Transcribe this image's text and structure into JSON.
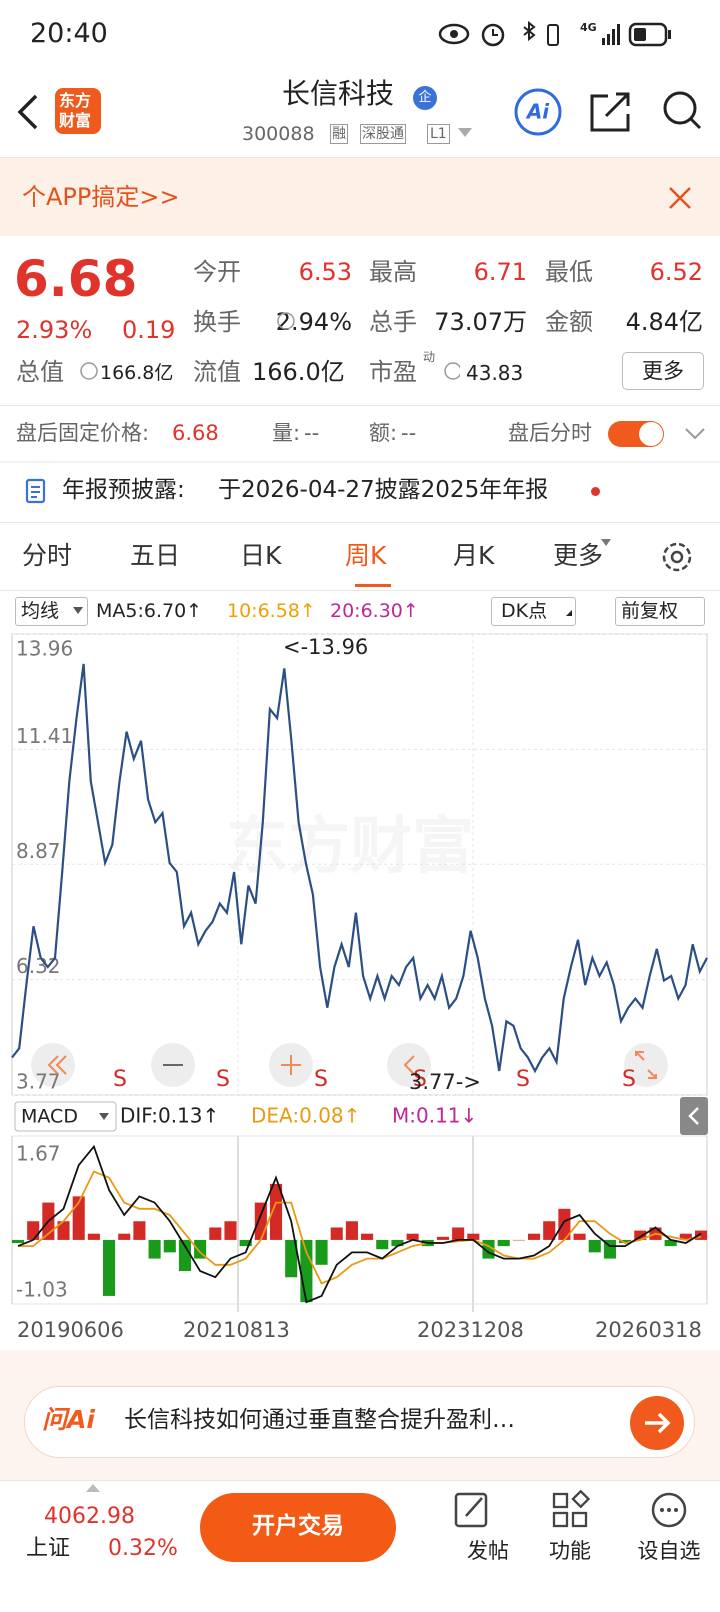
{
  "status_bar": {
    "time": "20:40",
    "network": "4G"
  },
  "header": {
    "logo": [
      "东方",
      "财富"
    ],
    "title": "长信科技",
    "badge": "企",
    "code": "300088",
    "tags": [
      "融",
      "深股通",
      "L1"
    ]
  },
  "banner": {
    "text": "个APP搞定>>"
  },
  "quote": {
    "price": "6.68",
    "change_pct": "2.93%",
    "change": "0.19",
    "stats": [
      {
        "label": "今开",
        "value": "6.53"
      },
      {
        "label": "最高",
        "value": "6.71"
      },
      {
        "label": "最低",
        "value": "6.52"
      },
      {
        "label": "换手",
        "value": "2.94%"
      },
      {
        "label": "总手",
        "value": "73.07万"
      },
      {
        "label": "金额",
        "value": "4.84亿"
      },
      {
        "label": "总值",
        "value": "166.8亿"
      },
      {
        "label": "流值",
        "value": "166.0亿"
      },
      {
        "label": "市盈",
        "sup": "动",
        "value": "43.83"
      }
    ],
    "more": "更多"
  },
  "after_hours": {
    "label": "盘后固定价格:",
    "price": "6.68",
    "volume_label": "量:",
    "volume": "--",
    "amount_label": "额:",
    "amount": "--",
    "toggle_label": "盘后分时"
  },
  "notice": {
    "label": "年报预披露:",
    "text": "于2026-04-27披露2025年年报"
  },
  "tabs": {
    "items": [
      "分时",
      "五日",
      "日K",
      "周K",
      "月K",
      "更多"
    ],
    "active": 3
  },
  "ma_bar": {
    "selector": "均线",
    "ma5": "MA5:6.70↑",
    "ma10": "10:6.58↑",
    "ma20": "20:6.30↑",
    "dk": "DK点",
    "adjust": "前复权"
  },
  "kline_chart": {
    "type": "line",
    "watermark": "东方财富",
    "color": "#2b4f85",
    "ylim": [
      3.77,
      13.96
    ],
    "yticks": [
      13.96,
      11.41,
      8.87,
      6.32,
      3.77
    ],
    "high_label": "<-13.96",
    "low_label": "3.77->",
    "signals": [
      "S",
      "S",
      "S",
      "S",
      "S",
      "S"
    ],
    "values": [
      4.6,
      4.8,
      6.2,
      7.5,
      6.8,
      6.6,
      6.8,
      8.7,
      10.7,
      12.1,
      13.3,
      10.7,
      9.8,
      8.9,
      9.3,
      10.7,
      11.8,
      11.2,
      11.6,
      10.3,
      9.8,
      10.0,
      8.9,
      8.7,
      7.5,
      7.8,
      7.1,
      7.4,
      7.6,
      8.0,
      7.8,
      8.7,
      7.1,
      8.4,
      8.0,
      9.8,
      12.3,
      12.1,
      13.2,
      11.6,
      9.8,
      8.9,
      8.2,
      6.6,
      5.7,
      6.6,
      7.1,
      6.6,
      7.8,
      6.4,
      5.9,
      6.4,
      5.9,
      6.4,
      6.2,
      6.6,
      6.8,
      5.9,
      6.2,
      5.9,
      6.4,
      5.7,
      5.9,
      6.4,
      7.4,
      6.8,
      5.9,
      5.3,
      4.3,
      5.4,
      5.3,
      4.8,
      4.6,
      4.3,
      4.6,
      4.8,
      4.5,
      5.9,
      6.6,
      7.2,
      6.2,
      6.8,
      6.4,
      6.7,
      6.2,
      5.4,
      5.7,
      5.9,
      5.7,
      6.4,
      7.0,
      6.3,
      6.4,
      5.9,
      6.2,
      7.1,
      6.5,
      6.8
    ]
  },
  "macd_chart": {
    "type": "bar",
    "selector": "MACD",
    "dif_label": "DIF:0.13↑",
    "dea_label": "DEA:0.08↑",
    "m_label": "M:0.11↓",
    "ylim": [
      -1.03,
      1.67
    ],
    "yticks": [
      1.67,
      -1.03
    ],
    "x_labels": [
      "20190606",
      "20210813",
      "20231208",
      "20260318"
    ],
    "up_color": "#d42a26",
    "down_color": "#1a9a1a",
    "histogram": [
      -0.05,
      0.3,
      0.6,
      0.3,
      0.7,
      0.1,
      -0.9,
      0.1,
      0.3,
      -0.3,
      -0.2,
      -0.5,
      -0.3,
      0.2,
      0.3,
      -0.1,
      0.6,
      0.9,
      -0.6,
      -1.0,
      -0.4,
      0.2,
      0.3,
      0.1,
      -0.15,
      -0.1,
      0.1,
      -0.1,
      0.05,
      0.2,
      0.1,
      -0.3,
      -0.1,
      0.0,
      0.1,
      0.3,
      0.5,
      0.1,
      -0.2,
      -0.3,
      -0.05,
      0.15,
      0.2,
      -0.1,
      0.1,
      0.15
    ],
    "dif": {
      "color": "#111111",
      "values": [
        -0.1,
        0.0,
        0.3,
        0.5,
        1.2,
        1.5,
        0.8,
        0.4,
        0.7,
        0.6,
        0.3,
        -0.1,
        -0.5,
        -0.6,
        -0.3,
        -0.2,
        0.4,
        1.0,
        0.3,
        -1.0,
        -0.9,
        -0.4,
        -0.2,
        -0.2,
        -0.3,
        -0.1,
        0.0,
        -0.05,
        -0.05,
        0.0,
        0.0,
        -0.2,
        -0.3,
        -0.3,
        -0.25,
        -0.1,
        0.3,
        0.4,
        0.1,
        -0.1,
        -0.1,
        0.05,
        0.2,
        0.0,
        -0.05,
        0.1
      ]
    },
    "dea": {
      "color": "#e89a12",
      "values": [
        -0.1,
        -0.1,
        0.1,
        0.3,
        0.6,
        1.1,
        1.0,
        0.6,
        0.5,
        0.5,
        0.4,
        0.1,
        -0.2,
        -0.4,
        -0.4,
        -0.3,
        0.0,
        0.6,
        0.6,
        -0.2,
        -0.7,
        -0.6,
        -0.4,
        -0.3,
        -0.3,
        -0.2,
        -0.1,
        -0.05,
        -0.05,
        -0.02,
        0.0,
        -0.1,
        -0.25,
        -0.3,
        -0.3,
        -0.2,
        0.0,
        0.3,
        0.3,
        0.1,
        -0.05,
        0.0,
        0.1,
        0.05,
        0.0,
        0.05
      ]
    }
  },
  "ask_ai": {
    "brand": "问Ai",
    "question": "长信科技如何通过垂直整合提升盈利…"
  },
  "bottom_bar": {
    "index_value": "4062.98",
    "index_name": "上证",
    "index_change": "0.32%",
    "trade_button": "开户交易",
    "nav": [
      "发帖",
      "功能",
      "设自选"
    ]
  }
}
